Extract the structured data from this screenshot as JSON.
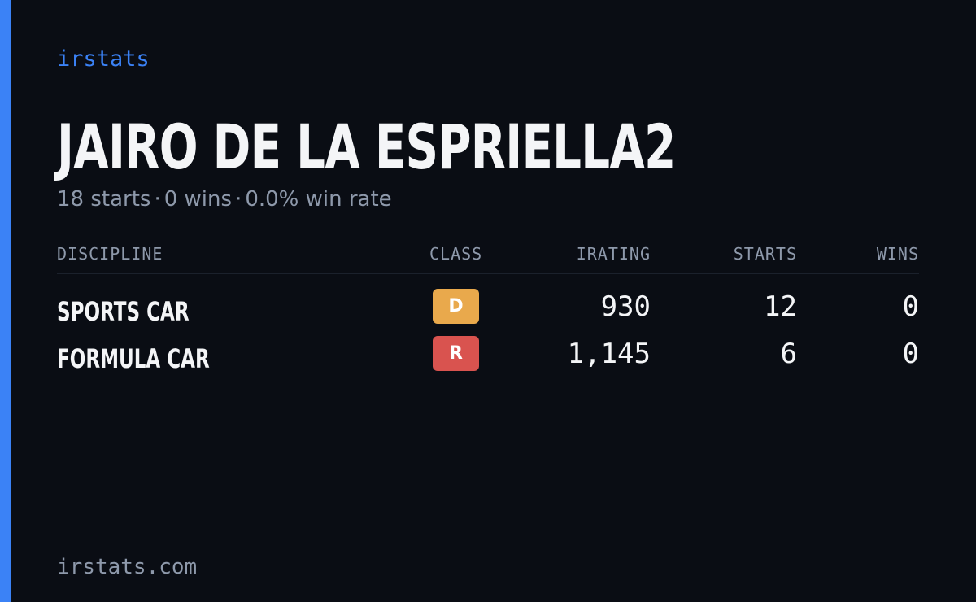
{
  "colors": {
    "background": "#0a0d14",
    "accent": "#3b82f6",
    "text_primary": "#f4f5f7",
    "text_muted": "#8e99ab",
    "class_d": "#e9a94c",
    "class_r": "#d9534f"
  },
  "brand": "irstats",
  "player": {
    "name": "JAIRO DE LA ESPRIELLA2"
  },
  "summary": {
    "starts": "18 starts",
    "wins": "0 wins",
    "win_rate": "0.0% win rate",
    "separator": "·"
  },
  "table": {
    "headers": {
      "discipline": "DISCIPLINE",
      "class": "CLASS",
      "irating": "IRATING",
      "starts": "STARTS",
      "wins": "WINS"
    },
    "rows": [
      {
        "discipline": "SPORTS CAR",
        "class": "D",
        "irating": "930",
        "starts": "12",
        "wins": "0"
      },
      {
        "discipline": "FORMULA CAR",
        "class": "R",
        "irating": "1,145",
        "starts": "6",
        "wins": "0"
      }
    ]
  },
  "footer": {
    "url": "irstats.com"
  }
}
